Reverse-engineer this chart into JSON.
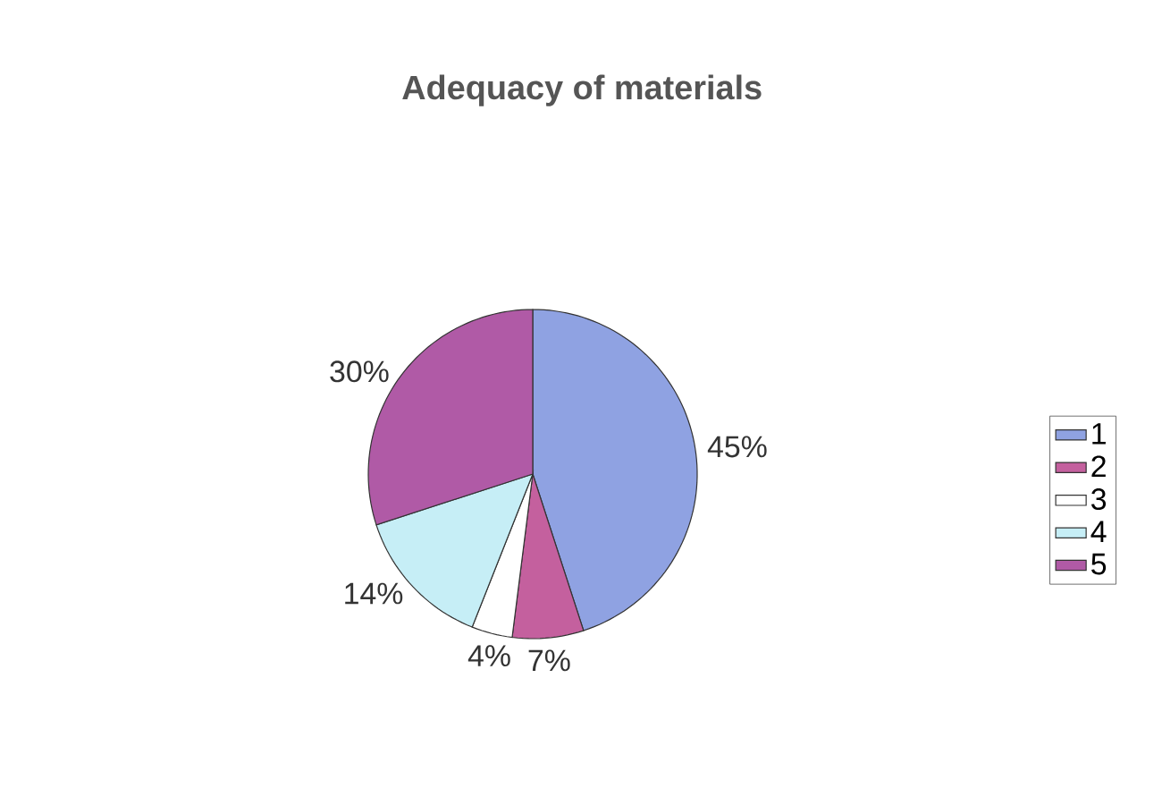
{
  "chart_data": {
    "type": "pie",
    "title": "Adequacy of materials",
    "categories": [
      "1",
      "2",
      "3",
      "4",
      "5"
    ],
    "values": [
      45,
      7,
      4,
      14,
      30
    ],
    "colors": [
      "#8fa2e2",
      "#c4609e",
      "#ffffff",
      "#c6eef6",
      "#b05aa6"
    ],
    "value_labels": [
      "45%",
      "7%",
      "4%",
      "14%",
      "30%"
    ],
    "legend": "right"
  }
}
